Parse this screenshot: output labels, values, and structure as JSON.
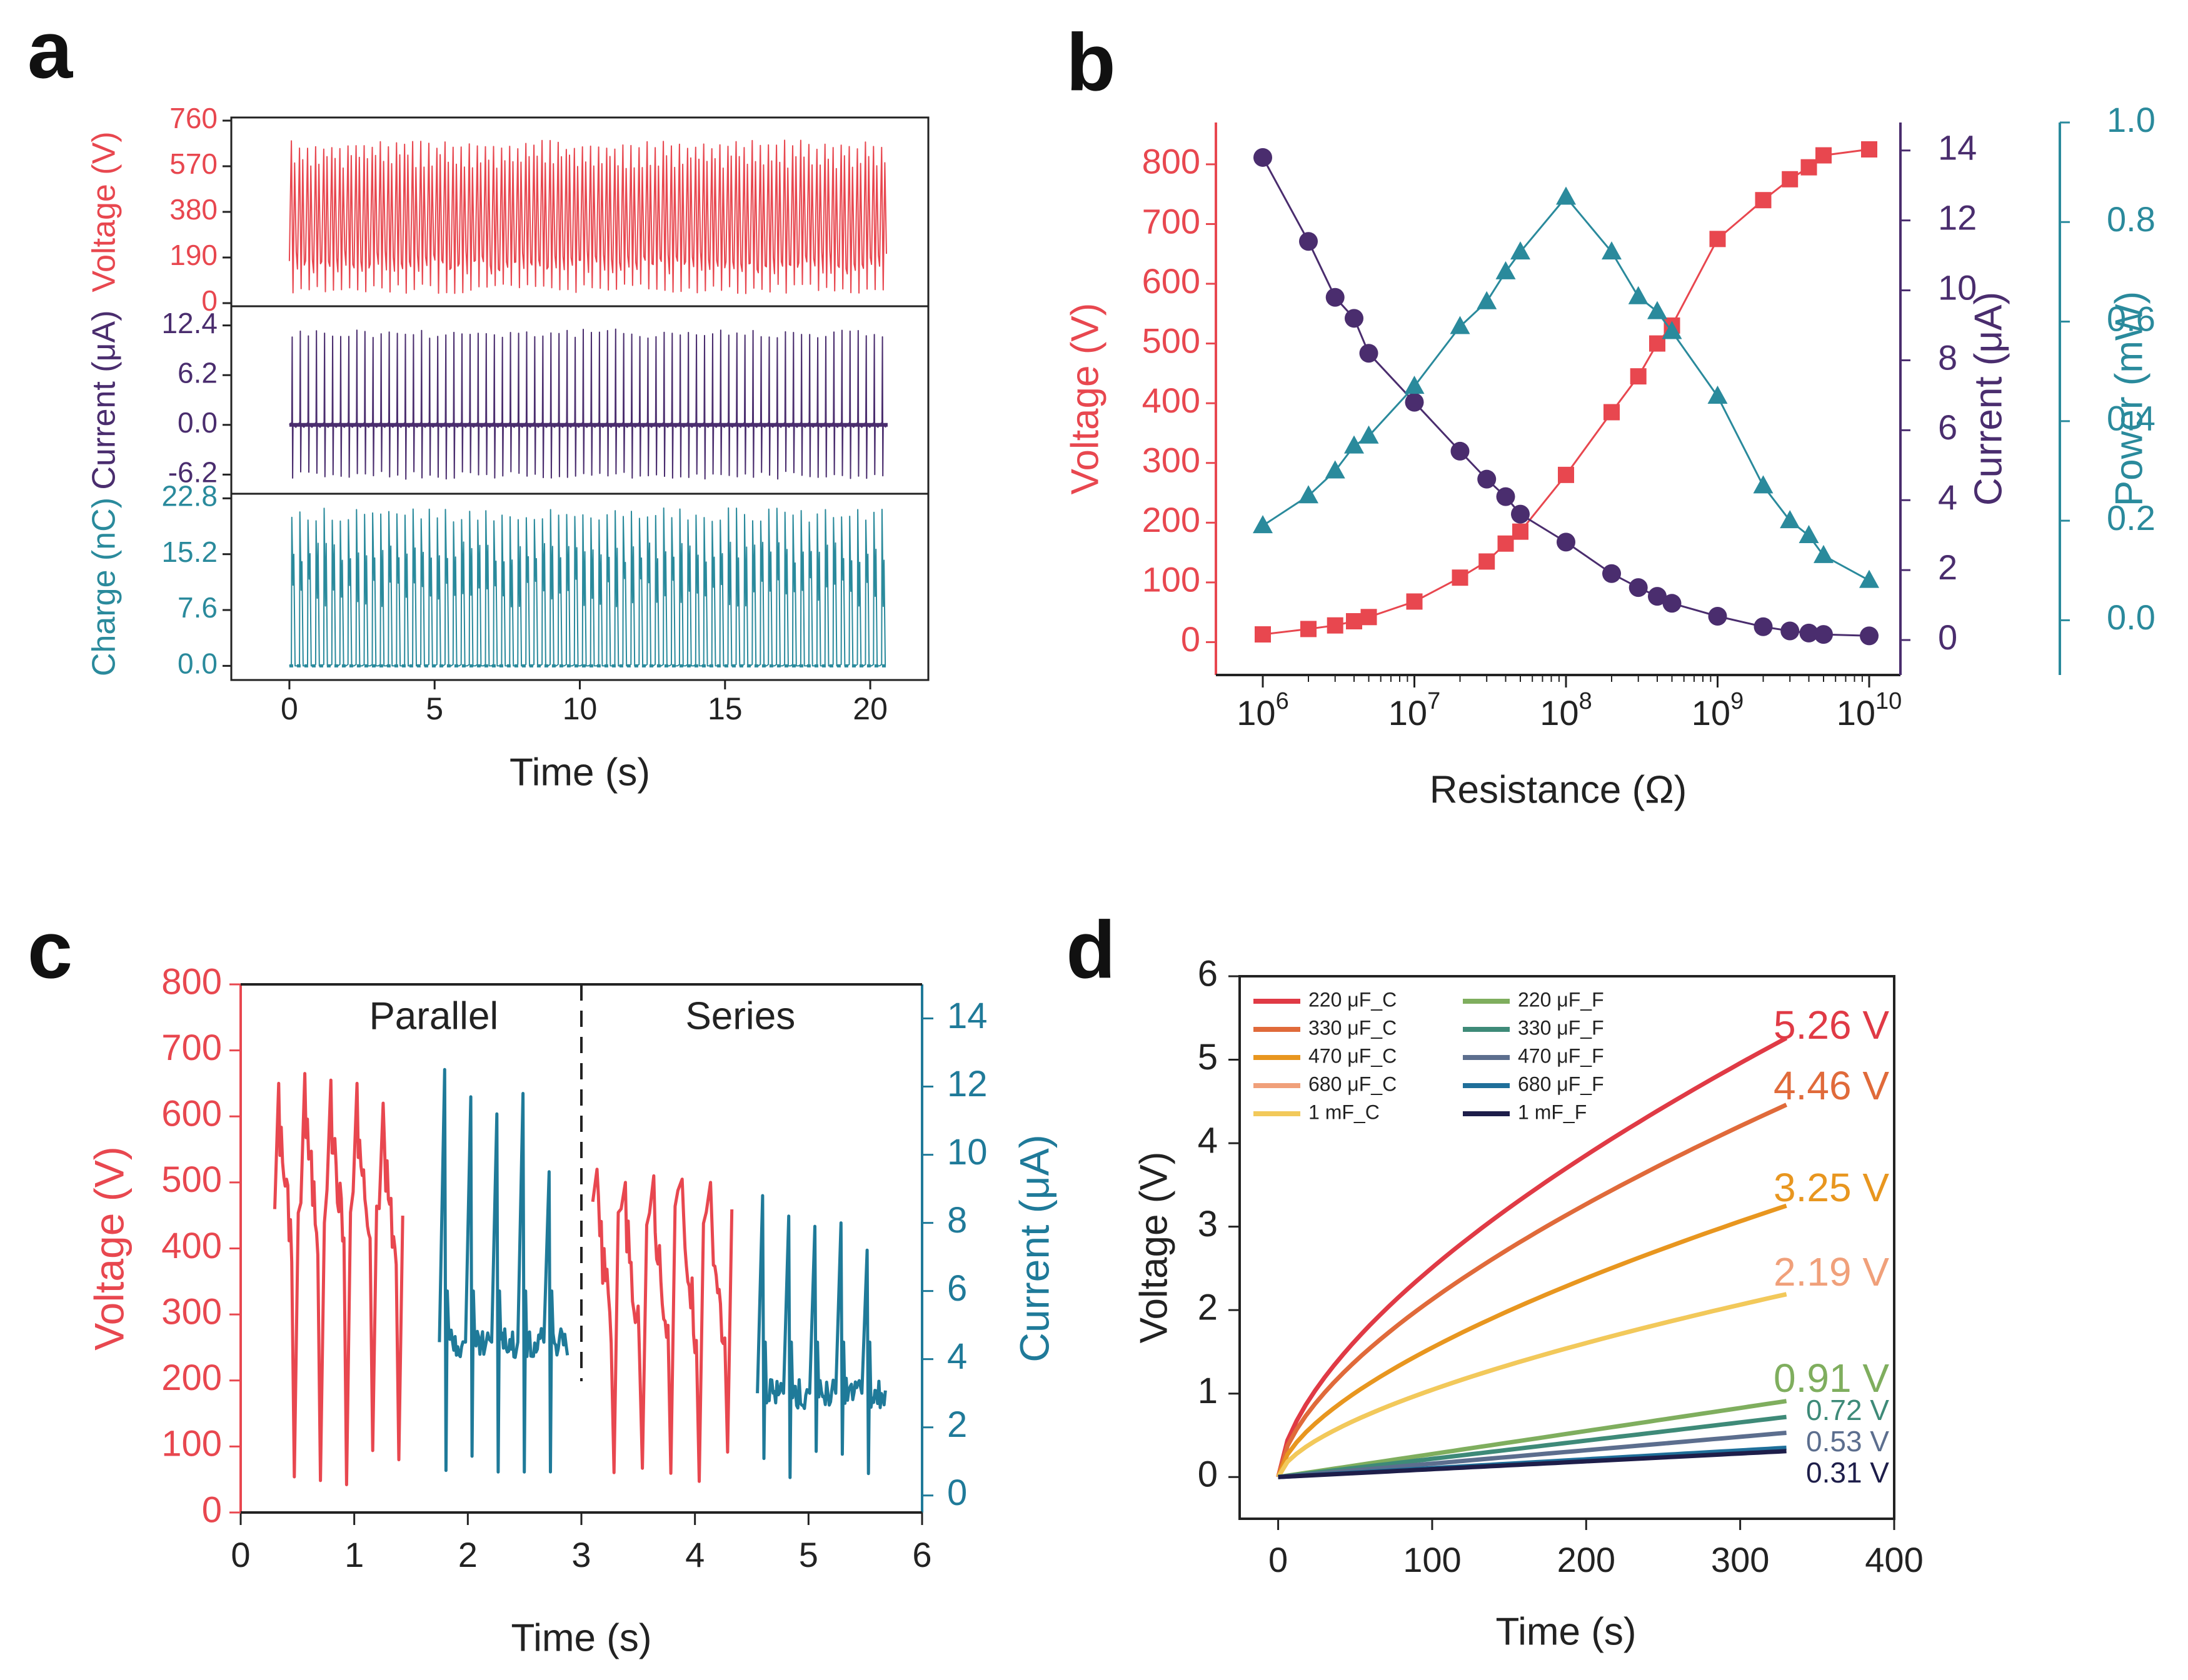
{
  "colors": {
    "voltage": "#e8474f",
    "current": "#4a2d6e",
    "power": "#2a8a9c",
    "current_c": "#1f7a99",
    "axis": "#222222"
  },
  "panel_labels": [
    "a",
    "b",
    "c",
    "d"
  ],
  "chart_data": [
    {
      "panel": "a",
      "type": "line",
      "xlabel": "Time (s)",
      "x_ticks": [
        "0",
        "5",
        "10",
        "15",
        "20"
      ],
      "xlim": [
        -2,
        22
      ],
      "subplots": [
        {
          "name": "voltage",
          "ylabel": "Voltage (V)",
          "ylim": [
            0,
            760
          ],
          "y_ticks": [
            "0",
            "190",
            "380",
            "570",
            "760"
          ],
          "signal": "oscillating 0-680 V, about 3.6 Hz",
          "duration_s": 20.6
        },
        {
          "name": "current",
          "ylabel": "Current (μA)",
          "ylim": [
            -8.2,
            14.4
          ],
          "y_ticks": [
            "-6.2",
            "0.0",
            "6.2",
            "12.4"
          ],
          "signal": "spikes up to about 11.5 μA / down to -6.5 μA around 0 baseline",
          "duration_s": 20.6
        },
        {
          "name": "charge",
          "ylabel": "Charge (nC)",
          "ylim": [
            -1.5,
            23
          ],
          "y_ticks": [
            "0.0",
            "7.6",
            "15.2",
            "22.8"
          ],
          "signal": "pulses 0 to about 21 nC",
          "duration_s": 20.6
        }
      ]
    },
    {
      "panel": "b",
      "type": "line",
      "xlabel": "Resistance (Ω)",
      "x_scale": "log",
      "x_ticks": [
        "10^6",
        "10^7",
        "10^8",
        "10^9",
        "10^10"
      ],
      "x": [
        1000000.0,
        2000000.0,
        3000000.0,
        4000000.0,
        5000000.0,
        10000000.0,
        20000000.0,
        30000000.0,
        40000000.0,
        50000000.0,
        100000000.0,
        200000000.0,
        300000000.0,
        400000000.0,
        500000000.0,
        1000000000.0,
        2000000000.0,
        3000000000.0,
        4000000000.0,
        5000000000.0,
        10000000000.0
      ],
      "series": [
        {
          "name": "Voltage",
          "axis": "left",
          "ylabel": "Voltage (V)",
          "ylim": [
            -55,
            870
          ],
          "y_ticks": [
            "0",
            "100",
            "200",
            "300",
            "400",
            "500",
            "600",
            "700",
            "800"
          ],
          "marker": "square",
          "values": [
            13,
            22,
            28,
            35,
            42,
            68,
            108,
            135,
            165,
            185,
            280,
            385,
            445,
            500,
            530,
            675,
            740,
            775,
            795,
            815,
            825
          ]
        },
        {
          "name": "Current",
          "axis": "right1",
          "ylabel": "Current (μA)",
          "ylim": [
            -1,
            14.8
          ],
          "y_ticks": [
            "0",
            "2",
            "4",
            "6",
            "8",
            "10",
            "12",
            "14"
          ],
          "marker": "circle",
          "values": [
            13.8,
            11.4,
            9.8,
            9.2,
            8.2,
            6.8,
            5.4,
            4.6,
            4.1,
            3.6,
            2.8,
            1.9,
            1.5,
            1.25,
            1.05,
            0.68,
            0.38,
            0.26,
            0.2,
            0.16,
            0.12
          ]
        },
        {
          "name": "Power",
          "axis": "right2",
          "ylabel": "Power (mW)",
          "ylim": [
            -0.11,
            1.0
          ],
          "y_ticks": [
            "0.0",
            "0.2",
            "0.4",
            "0.6",
            "0.8",
            "1.0"
          ],
          "marker": "triangle",
          "values": [
            0.19,
            0.25,
            0.3,
            0.35,
            0.37,
            0.47,
            0.59,
            0.64,
            0.7,
            0.74,
            0.85,
            0.74,
            0.65,
            0.62,
            0.58,
            0.45,
            0.27,
            0.2,
            0.17,
            0.13,
            0.08
          ]
        }
      ]
    },
    {
      "panel": "c",
      "type": "line",
      "xlabel": "Time (s)",
      "x_ticks": [
        "0",
        "1",
        "2",
        "3",
        "4",
        "5",
        "6"
      ],
      "xlim": [
        0,
        6
      ],
      "divider_x": 3,
      "annotations": [
        "Parallel",
        "Series"
      ],
      "series": [
        {
          "name": "Voltage",
          "axis": "left",
          "ylabel": "Voltage (V)",
          "ylim": [
            0,
            800
          ],
          "y_ticks": [
            "0",
            "100",
            "200",
            "300",
            "400",
            "500",
            "600",
            "700",
            "800"
          ],
          "segments": [
            {
              "t0": 0.3,
              "t1": 1.45,
              "peaks": [
                650,
                665,
                655,
                650,
                620
              ]
            },
            {
              "t0": 3.1,
              "t1": 4.35,
              "peaks": [
                520,
                500,
                510,
                505,
                500
              ]
            }
          ]
        },
        {
          "name": "Current",
          "axis": "right",
          "ylabel": "Current (μA)",
          "ylim": [
            -0.5,
            15
          ],
          "y_ticks": [
            "0",
            "2",
            "4",
            "6",
            "8",
            "10",
            "12",
            "14"
          ],
          "segments": [
            {
              "t0": 1.75,
              "t1": 2.9,
              "baseline": 4.5,
              "peaks": [
                12.5,
                11.7,
                11.2,
                11.8,
                9.5
              ]
            },
            {
              "t0": 4.55,
              "t1": 5.7,
              "baseline": 3.0,
              "peaks": [
                8.8,
                8.2,
                7.9,
                8.0,
                7.2
              ]
            }
          ]
        }
      ]
    },
    {
      "panel": "d",
      "type": "line",
      "xlabel": "Time (s)",
      "ylabel": "Voltage (V)",
      "xlim": [
        -25,
        400
      ],
      "ylim": [
        -0.5,
        6
      ],
      "x_ticks": [
        "0",
        "100",
        "200",
        "300",
        "400"
      ],
      "y_ticks": [
        "0",
        "1",
        "2",
        "3",
        "4",
        "5",
        "6"
      ],
      "series": [
        {
          "name": "220 μF_C",
          "final": 5.26,
          "color": "#e03a45"
        },
        {
          "name": "330 μF_C",
          "final": 4.46,
          "color": "#e06a3a"
        },
        {
          "name": "470 μF_C",
          "final": 3.25,
          "color": "#e8961f"
        },
        {
          "name": "680 μF_C",
          "final": 2.19,
          "color": "#f0a07a"
        },
        {
          "name": "1 mF_C",
          "final": 2.19,
          "color": "#f2c95a"
        },
        {
          "name": "220 μF_F",
          "final": 0.91,
          "color": "#7fae5e"
        },
        {
          "name": "330 μF_F",
          "final": 0.72,
          "color": "#3e8a78"
        },
        {
          "name": "470 μF_F",
          "final": 0.53,
          "color": "#5c6e8e"
        },
        {
          "name": "680 μF_F",
          "final": 0.35,
          "color": "#1f6f9a"
        },
        {
          "name": "1 mF_F",
          "final": 0.31,
          "color": "#1e1e4a"
        }
      ],
      "end_labels": [
        {
          "text": "5.26 V",
          "value": 5.26,
          "color": "#e03a45"
        },
        {
          "text": "4.46 V",
          "value": 4.46,
          "color": "#e06a3a"
        },
        {
          "text": "3.25 V",
          "value": 3.25,
          "color": "#e8961f"
        },
        {
          "text": "2.19 V",
          "value": 2.19,
          "color": "#f0a07a"
        },
        {
          "text": "0.91 V",
          "value": 0.91,
          "color": "#7fae5e"
        },
        {
          "text": "0.72 V",
          "value": 0.72,
          "color": "#3e8a78"
        },
        {
          "text": "0.53 V",
          "value": 0.53,
          "color": "#5c6e8e"
        },
        {
          "text": "0.31 V",
          "value": 0.31,
          "color": "#1e1e4a"
        }
      ]
    }
  ]
}
